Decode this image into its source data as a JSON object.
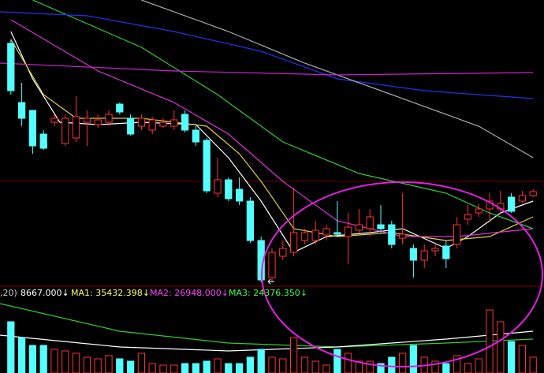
{
  "chart_data": {
    "type": "candlestick",
    "indicator_texts": [
      {
        "text": ",20)",
        "color": "#cccccc"
      },
      {
        "text": "8667.000↓",
        "color": "#ffffff"
      },
      {
        "text": "MA1: 35432.398↓",
        "color": "#ffff66"
      },
      {
        "text": "MA2: 26948.000↓",
        "color": "#ff44ff"
      },
      {
        "text": "MA3: 24376.350↓",
        "color": "#44ff44"
      }
    ],
    "up_color": "#ff3232",
    "down_color": "#54ffff",
    "xlim": [
      -1,
      49
    ],
    "ylim": [
      38,
      400
    ],
    "volume_ylim": [
      0,
      93
    ],
    "open": [
      345,
      270,
      260,
      230,
      245,
      218,
      225,
      245,
      242,
      245,
      268,
      250,
      240,
      235,
      240,
      240,
      255,
      235,
      222,
      155,
      172,
      160,
      145,
      95,
      48,
      75,
      80,
      95,
      95,
      102,
      105,
      100,
      108,
      110,
      115,
      115,
      98,
      85,
      70,
      82,
      88,
      90,
      122,
      130,
      135,
      135,
      150,
      145,
      152
    ],
    "high": [
      350,
      295,
      260,
      235,
      255,
      255,
      278,
      260,
      255,
      260,
      270,
      255,
      255,
      252,
      250,
      260,
      260,
      240,
      225,
      200,
      175,
      175,
      150,
      100,
      85,
      95,
      162,
      110,
      120,
      115,
      145,
      130,
      135,
      135,
      140,
      120,
      155,
      90,
      90,
      90,
      95,
      125,
      140,
      142,
      155,
      158,
      155,
      158,
      160
    ],
    "low": [
      280,
      240,
      205,
      210,
      240,
      215,
      220,
      215,
      238,
      240,
      255,
      228,
      235,
      230,
      238,
      235,
      232,
      215,
      155,
      150,
      145,
      140,
      92,
      42,
      42,
      70,
      75,
      90,
      90,
      95,
      100,
      65,
      105,
      100,
      105,
      85,
      90,
      48,
      60,
      75,
      60,
      85,
      115,
      125,
      120,
      130,
      130,
      142,
      150
    ],
    "close": [
      285,
      250,
      215,
      212,
      250,
      250,
      252,
      250,
      248,
      255,
      258,
      230,
      250,
      248,
      245,
      248,
      235,
      220,
      158,
      172,
      148,
      145,
      95,
      45,
      80,
      85,
      105,
      105,
      108,
      110,
      103,
      112,
      115,
      125,
      110,
      90,
      103,
      70,
      82,
      85,
      72,
      115,
      128,
      135,
      145,
      142,
      132,
      152,
      157
    ],
    "volume": [
      65,
      45,
      35,
      35,
      30,
      28,
      25,
      20,
      18,
      22,
      18,
      15,
      25,
      12,
      10,
      10,
      12,
      12,
      15,
      18,
      12,
      12,
      20,
      30,
      20,
      18,
      45,
      20,
      15,
      10,
      30,
      25,
      15,
      15,
      12,
      20,
      25,
      35,
      20,
      15,
      12,
      22,
      12,
      18,
      80,
      65,
      40,
      35,
      20
    ],
    "price_lines": [
      {
        "color": "#ffffff",
        "x": [
          0,
          2,
          4.5,
          8,
          12,
          17,
          20,
          23,
          26,
          29,
          33,
          36,
          40,
          42,
          45,
          48
        ],
        "values": [
          360,
          300,
          245,
          242,
          245,
          242,
          200,
          145,
          80,
          100,
          105,
          110,
          85,
          100,
          130,
          145
        ]
      },
      {
        "color": "#e0d040",
        "x": [
          0,
          3,
          6,
          12,
          18,
          21,
          23,
          26,
          30,
          35,
          40,
          44,
          48
        ],
        "values": [
          350,
          280,
          250,
          250,
          240,
          205,
          170,
          110,
          100,
          105,
          95,
          100,
          125
        ]
      },
      {
        "color": "#dd33dd",
        "x": [
          0,
          8,
          15,
          20,
          25,
          30,
          36,
          41,
          48
        ],
        "values": [
          375,
          310,
          270,
          230,
          170,
          120,
          100,
          100,
          110
        ]
      },
      {
        "color": "#33cc33",
        "x": [
          2,
          12,
          19,
          25,
          32,
          40,
          44,
          48
        ],
        "values": [
          400,
          340,
          280,
          220,
          180,
          155,
          130,
          110
        ]
      },
      {
        "color": "#2233ee",
        "x": [
          -1,
          7,
          15,
          23,
          30,
          38,
          48
        ],
        "values": [
          385,
          380,
          360,
          335,
          300,
          285,
          275
        ]
      },
      {
        "color": "#aaaaaa",
        "x": [
          12,
          20,
          27,
          35,
          43,
          48
        ],
        "values": [
          400,
          360,
          320,
          280,
          240,
          200
        ]
      },
      {
        "color": "#cc22cc",
        "x": [
          -1,
          15,
          30,
          48
        ],
        "values": [
          320,
          310,
          305,
          308
        ]
      }
    ],
    "volume_lines": [
      {
        "color": "#33cc33",
        "x": [
          -1,
          10,
          20,
          30,
          40,
          48
        ],
        "values": [
          88,
          53,
          38,
          33,
          38,
          43
        ]
      },
      {
        "color": "#ffffff",
        "x": [
          -1,
          10,
          20,
          30,
          40,
          48
        ],
        "values": [
          48,
          33,
          28,
          33,
          43,
          53
        ]
      }
    ]
  }
}
